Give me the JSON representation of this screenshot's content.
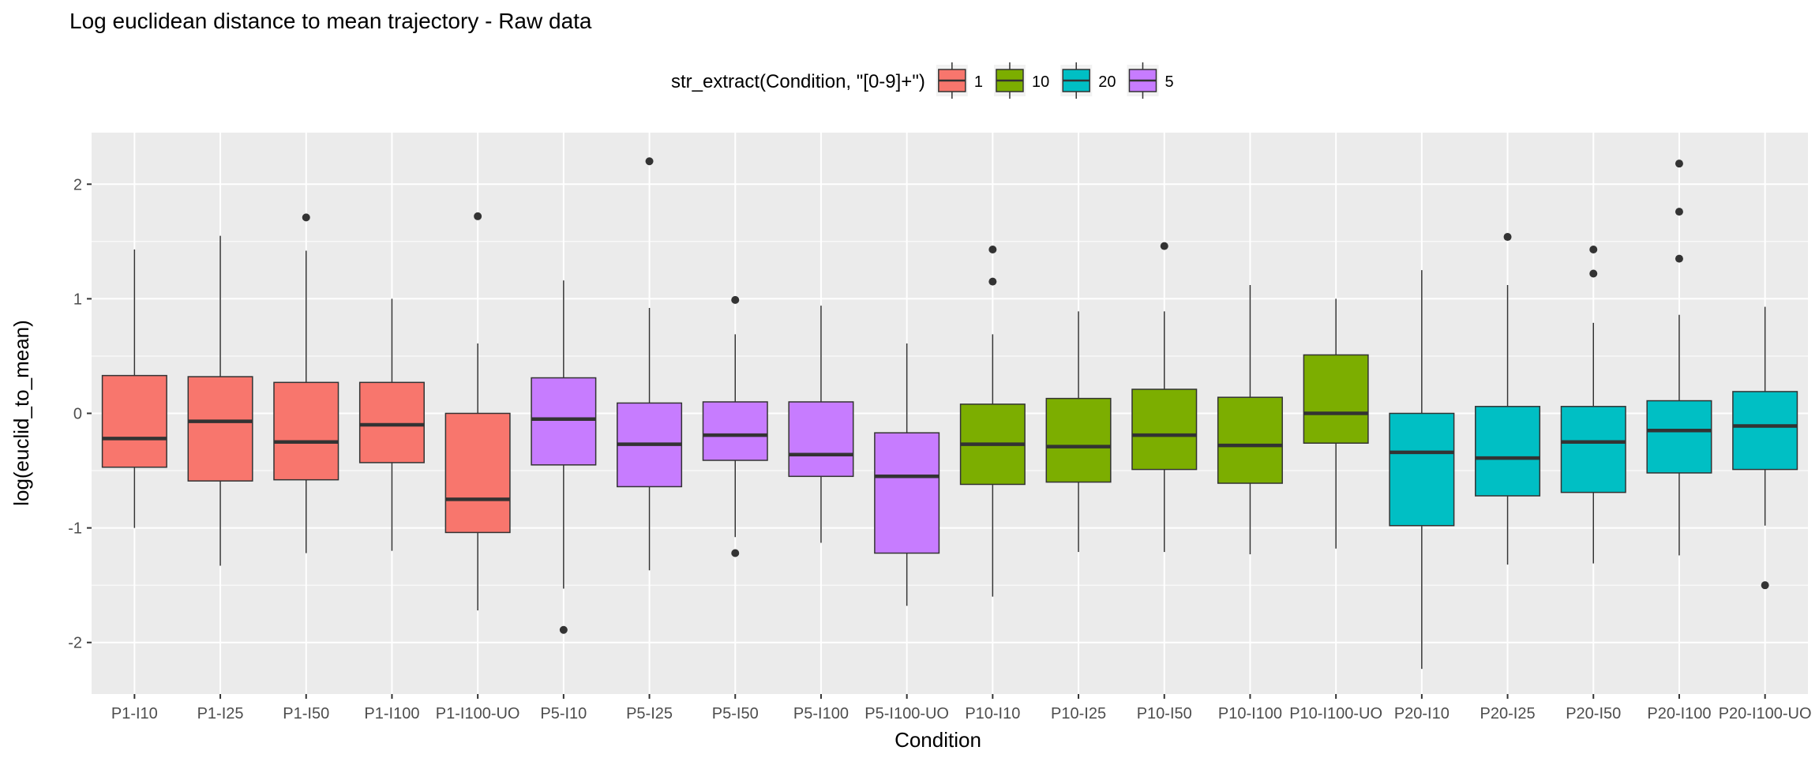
{
  "chart_data": {
    "type": "boxplot",
    "title": "Log euclidean distance to mean trajectory - Raw data",
    "xlabel": "Condition",
    "ylabel": "log(euclid_to_mean)",
    "ylim": [
      -2.45,
      2.45
    ],
    "y_ticks": [
      -2,
      -1,
      0,
      1,
      2
    ],
    "y_tick_labels": [
      "-2",
      "-1",
      "0",
      "1",
      "2"
    ],
    "grid": true,
    "legend": {
      "title": "str_extract(Condition, \"[0-9]+\")",
      "position": "top",
      "entries": [
        {
          "label": "1",
          "color": "#F8766D"
        },
        {
          "label": "10",
          "color": "#7CAE00"
        },
        {
          "label": "20",
          "color": "#00BFC4"
        },
        {
          "label": "5",
          "color": "#C77CFF"
        }
      ]
    },
    "categories": [
      "P1-I10",
      "P1-I25",
      "P1-I50",
      "P1-I100",
      "P1-I100-UO",
      "P5-I10",
      "P5-I25",
      "P5-I50",
      "P5-I100",
      "P5-I100-UO",
      "P10-I10",
      "P10-I25",
      "P10-I50",
      "P10-I100",
      "P10-I100-UO",
      "P20-I10",
      "P20-I25",
      "P20-I50",
      "P20-I100",
      "P20-I100-UO"
    ],
    "boxes": [
      {
        "group": "1",
        "min": -1.0,
        "q1": -0.47,
        "median": -0.22,
        "q3": 0.33,
        "max": 1.43,
        "outliers": []
      },
      {
        "group": "1",
        "min": -1.33,
        "q1": -0.59,
        "median": -0.07,
        "q3": 0.32,
        "max": 1.55,
        "outliers": []
      },
      {
        "group": "1",
        "min": -1.22,
        "q1": -0.58,
        "median": -0.25,
        "q3": 0.27,
        "max": 1.42,
        "outliers": [
          1.71
        ]
      },
      {
        "group": "1",
        "min": -1.2,
        "q1": -0.43,
        "median": -0.1,
        "q3": 0.27,
        "max": 1.0,
        "outliers": []
      },
      {
        "group": "1",
        "min": -1.72,
        "q1": -1.04,
        "median": -0.75,
        "q3": 0.0,
        "max": 0.61,
        "outliers": [
          1.72
        ]
      },
      {
        "group": "5",
        "min": -1.53,
        "q1": -0.45,
        "median": -0.05,
        "q3": 0.31,
        "max": 1.16,
        "outliers": [
          -1.89
        ]
      },
      {
        "group": "5",
        "min": -1.37,
        "q1": -0.64,
        "median": -0.27,
        "q3": 0.09,
        "max": 0.92,
        "outliers": [
          2.2
        ]
      },
      {
        "group": "5",
        "min": -1.08,
        "q1": -0.41,
        "median": -0.19,
        "q3": 0.1,
        "max": 0.69,
        "outliers": [
          0.99,
          -1.22
        ]
      },
      {
        "group": "5",
        "min": -1.13,
        "q1": -0.55,
        "median": -0.36,
        "q3": 0.1,
        "max": 0.94,
        "outliers": []
      },
      {
        "group": "5",
        "min": -1.68,
        "q1": -1.22,
        "median": -0.55,
        "q3": -0.17,
        "max": 0.61,
        "outliers": []
      },
      {
        "group": "10",
        "min": -1.6,
        "q1": -0.62,
        "median": -0.27,
        "q3": 0.08,
        "max": 0.69,
        "outliers": [
          1.43,
          1.15
        ]
      },
      {
        "group": "10",
        "min": -1.21,
        "q1": -0.6,
        "median": -0.29,
        "q3": 0.13,
        "max": 0.89,
        "outliers": []
      },
      {
        "group": "10",
        "min": -1.21,
        "q1": -0.49,
        "median": -0.19,
        "q3": 0.21,
        "max": 0.89,
        "outliers": [
          1.46
        ]
      },
      {
        "group": "10",
        "min": -1.23,
        "q1": -0.61,
        "median": -0.28,
        "q3": 0.14,
        "max": 1.12,
        "outliers": []
      },
      {
        "group": "10",
        "min": -1.18,
        "q1": -0.26,
        "median": 0.0,
        "q3": 0.51,
        "max": 1.0,
        "outliers": []
      },
      {
        "group": "20",
        "min": -2.23,
        "q1": -0.98,
        "median": -0.34,
        "q3": 0.0,
        "max": 1.25,
        "outliers": []
      },
      {
        "group": "20",
        "min": -1.32,
        "q1": -0.72,
        "median": -0.39,
        "q3": 0.06,
        "max": 1.12,
        "outliers": [
          1.54
        ]
      },
      {
        "group": "20",
        "min": -1.31,
        "q1": -0.69,
        "median": -0.25,
        "q3": 0.06,
        "max": 0.79,
        "outliers": [
          1.43,
          1.22
        ]
      },
      {
        "group": "20",
        "min": -1.24,
        "q1": -0.52,
        "median": -0.15,
        "q3": 0.11,
        "max": 0.86,
        "outliers": [
          2.18,
          1.76,
          1.35
        ]
      },
      {
        "group": "20",
        "min": -0.98,
        "q1": -0.49,
        "median": -0.11,
        "q3": 0.19,
        "max": 0.93,
        "outliers": [
          -1.5
        ]
      }
    ]
  }
}
